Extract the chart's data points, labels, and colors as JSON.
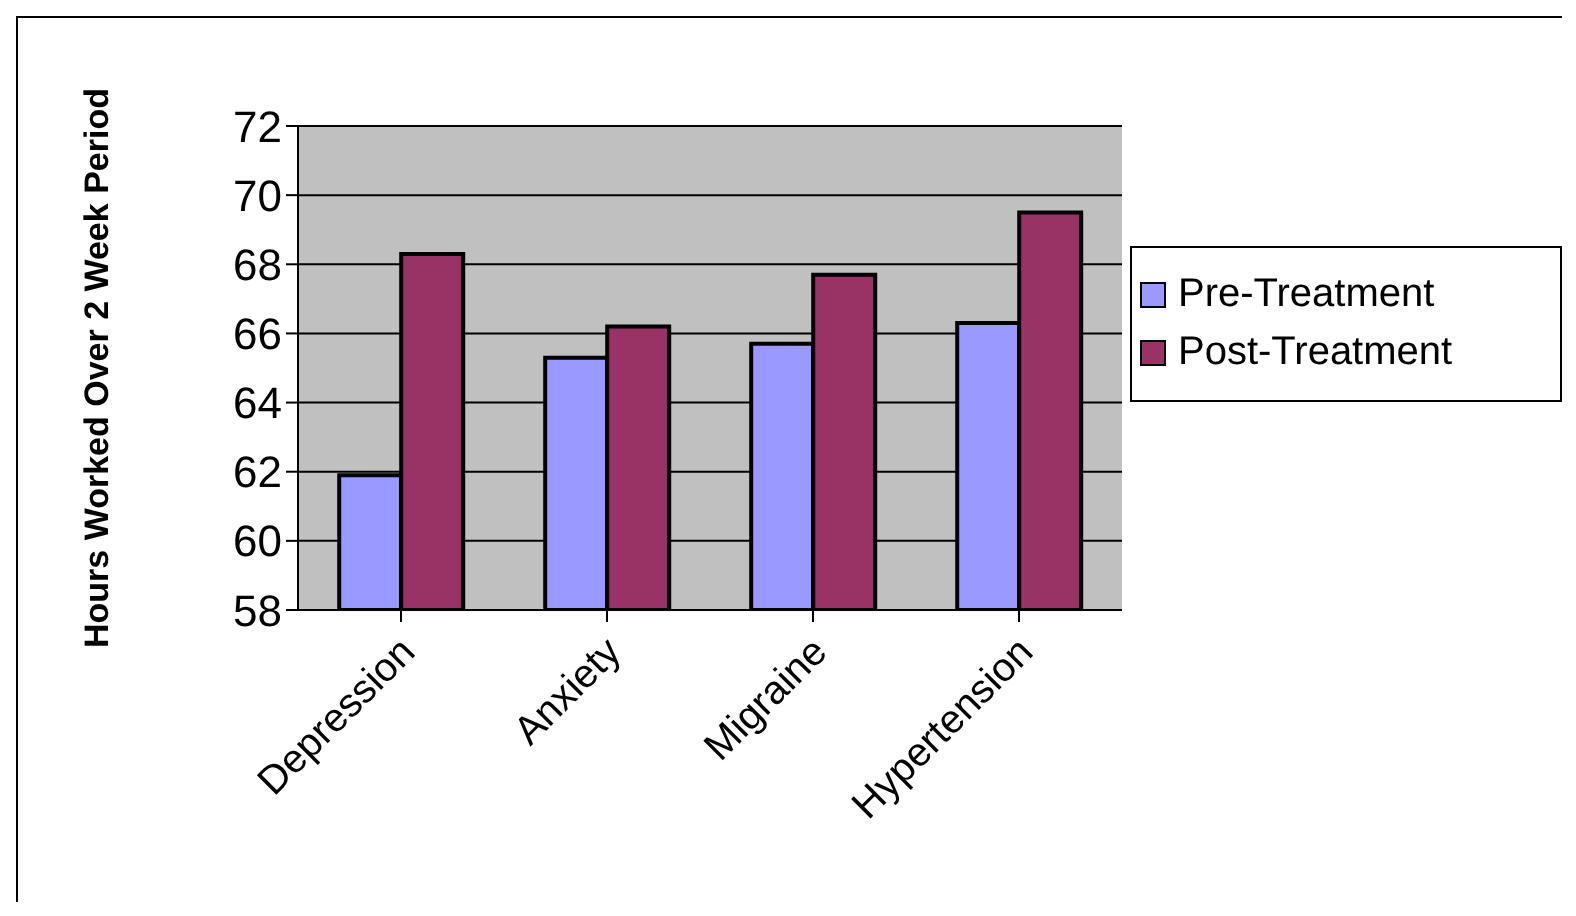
{
  "chart_data": {
    "type": "bar",
    "ylabel": "Hours Worked Over 2 Week Period",
    "categories": [
      "Depression",
      "Anxiety",
      "Migraine",
      "Hypertension"
    ],
    "series": [
      {
        "name": "Pre-Treatment",
        "color": "#9999ff",
        "values": [
          61.9,
          65.3,
          65.7,
          66.3
        ]
      },
      {
        "name": "Post-Treatment",
        "color": "#993366",
        "values": [
          68.3,
          66.2,
          67.7,
          69.5
        ]
      }
    ],
    "ylim": [
      58,
      72
    ],
    "yticks": [
      58,
      60,
      62,
      64,
      66,
      68,
      70,
      72
    ],
    "grid": "y",
    "legend": "right"
  }
}
